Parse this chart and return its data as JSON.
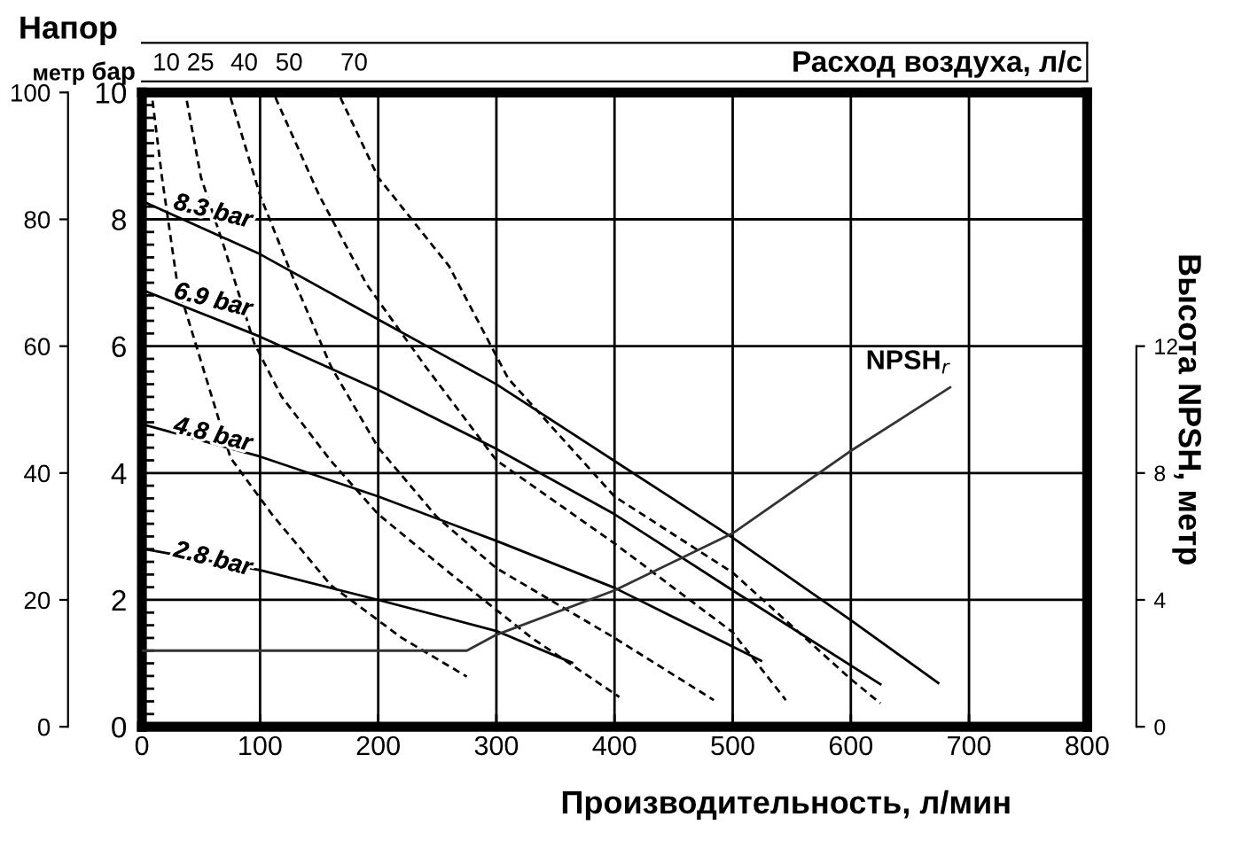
{
  "chart_data": {
    "type": "line",
    "title": "Напор",
    "xlabel": "Производительность, л/мин",
    "ylabel": "метр",
    "y2label": "бар",
    "y3label": "Высота NPSH, метр",
    "x2label": "Расход воздуха, л/с",
    "xlim": [
      0,
      800
    ],
    "xticks": [
      0,
      100,
      200,
      300,
      400,
      500,
      600,
      700,
      800
    ],
    "ylim": [
      0,
      100
    ],
    "yticks": [
      0,
      20,
      40,
      60,
      80,
      100
    ],
    "y2lim": [
      0,
      10
    ],
    "y2ticks": [
      0,
      2,
      4,
      6,
      8,
      10
    ],
    "y3lim": [
      0,
      20
    ],
    "y3ticks": [
      0,
      4,
      8,
      12
    ],
    "grid": true,
    "legend": false,
    "marker": "none",
    "series": [
      {
        "name": "8.3 bar",
        "color": "#000000",
        "line_style": "solid",
        "x": [
          0,
          100,
          200,
          300,
          400,
          500,
          600,
          674
        ],
        "values": [
          82.9,
          74.5,
          64.2,
          54.0,
          41.9,
          29.8,
          16.8,
          6.9
        ]
      },
      {
        "name": "6.9 bar",
        "color": "#000000",
        "line_style": "solid",
        "x": [
          0,
          100,
          200,
          300,
          400,
          500,
          625
        ],
        "values": [
          68.9,
          61.5,
          53.1,
          43.8,
          33.5,
          21.5,
          6.7
        ]
      },
      {
        "name": "4.8 bar",
        "color": "#000000",
        "line_style": "solid",
        "x": [
          0,
          100,
          200,
          300,
          400,
          524
        ],
        "values": [
          47.7,
          42.6,
          36.3,
          29.3,
          21.9,
          10.4
        ]
      },
      {
        "name": "2.8 bar",
        "color": "#000000",
        "line_style": "solid",
        "x": [
          0,
          100,
          200,
          300,
          364
        ],
        "values": [
          28.1,
          24.7,
          20.0,
          15.1,
          10.1
        ]
      },
      {
        "name": "10",
        "color": "#000000",
        "line_style": "dashed",
        "x": [
          9,
          17,
          30,
          75,
          110,
          160,
          220,
          275
        ],
        "values": [
          98.7,
          86.6,
          69.8,
          42.4,
          33.5,
          22.3,
          14.0,
          7.9
        ]
      },
      {
        "name": "25",
        "color": "#000000",
        "line_style": "dashed",
        "x": [
          38,
          50,
          70,
          95,
          118,
          160,
          200,
          260,
          330,
          404
        ],
        "values": [
          98.7,
          86.6,
          75.4,
          60.5,
          52.1,
          41.9,
          33.5,
          24.3,
          14.0,
          4.7
        ]
      },
      {
        "name": "40",
        "color": "#000000",
        "line_style": "dashed",
        "x": [
          75,
          100,
          130,
          160,
          200,
          250,
          300,
          400,
          484
        ],
        "values": [
          99.2,
          83.8,
          69.8,
          56.8,
          44,
          33,
          25,
          14,
          4.2
        ]
      },
      {
        "name": "50",
        "color": "#000000",
        "line_style": "dashed",
        "x": [
          113,
          150,
          190,
          240,
          300,
          400,
          500,
          545
        ],
        "values": [
          99.2,
          83.8,
          69.8,
          56.8,
          42,
          28.9,
          14.9,
          4.2
        ]
      },
      {
        "name": "70",
        "color": "#000000",
        "line_style": "dashed",
        "x": [
          168,
          200,
          260,
          310,
          400,
          500,
          600,
          625
        ],
        "values": [
          99.2,
          86.6,
          72.6,
          54.9,
          36.3,
          24.3,
          7.5,
          3.7
        ]
      },
      {
        "name": "NPSH$_{r}$",
        "color": "#333333",
        "line_style": "solid",
        "axis": "y3",
        "x": [
          0,
          275,
          300,
          400,
          500,
          600,
          684
        ],
        "values": [
          2.4,
          2.4,
          2.9,
          4.3,
          6.1,
          8.7,
          10.7
        ]
      }
    ]
  }
}
